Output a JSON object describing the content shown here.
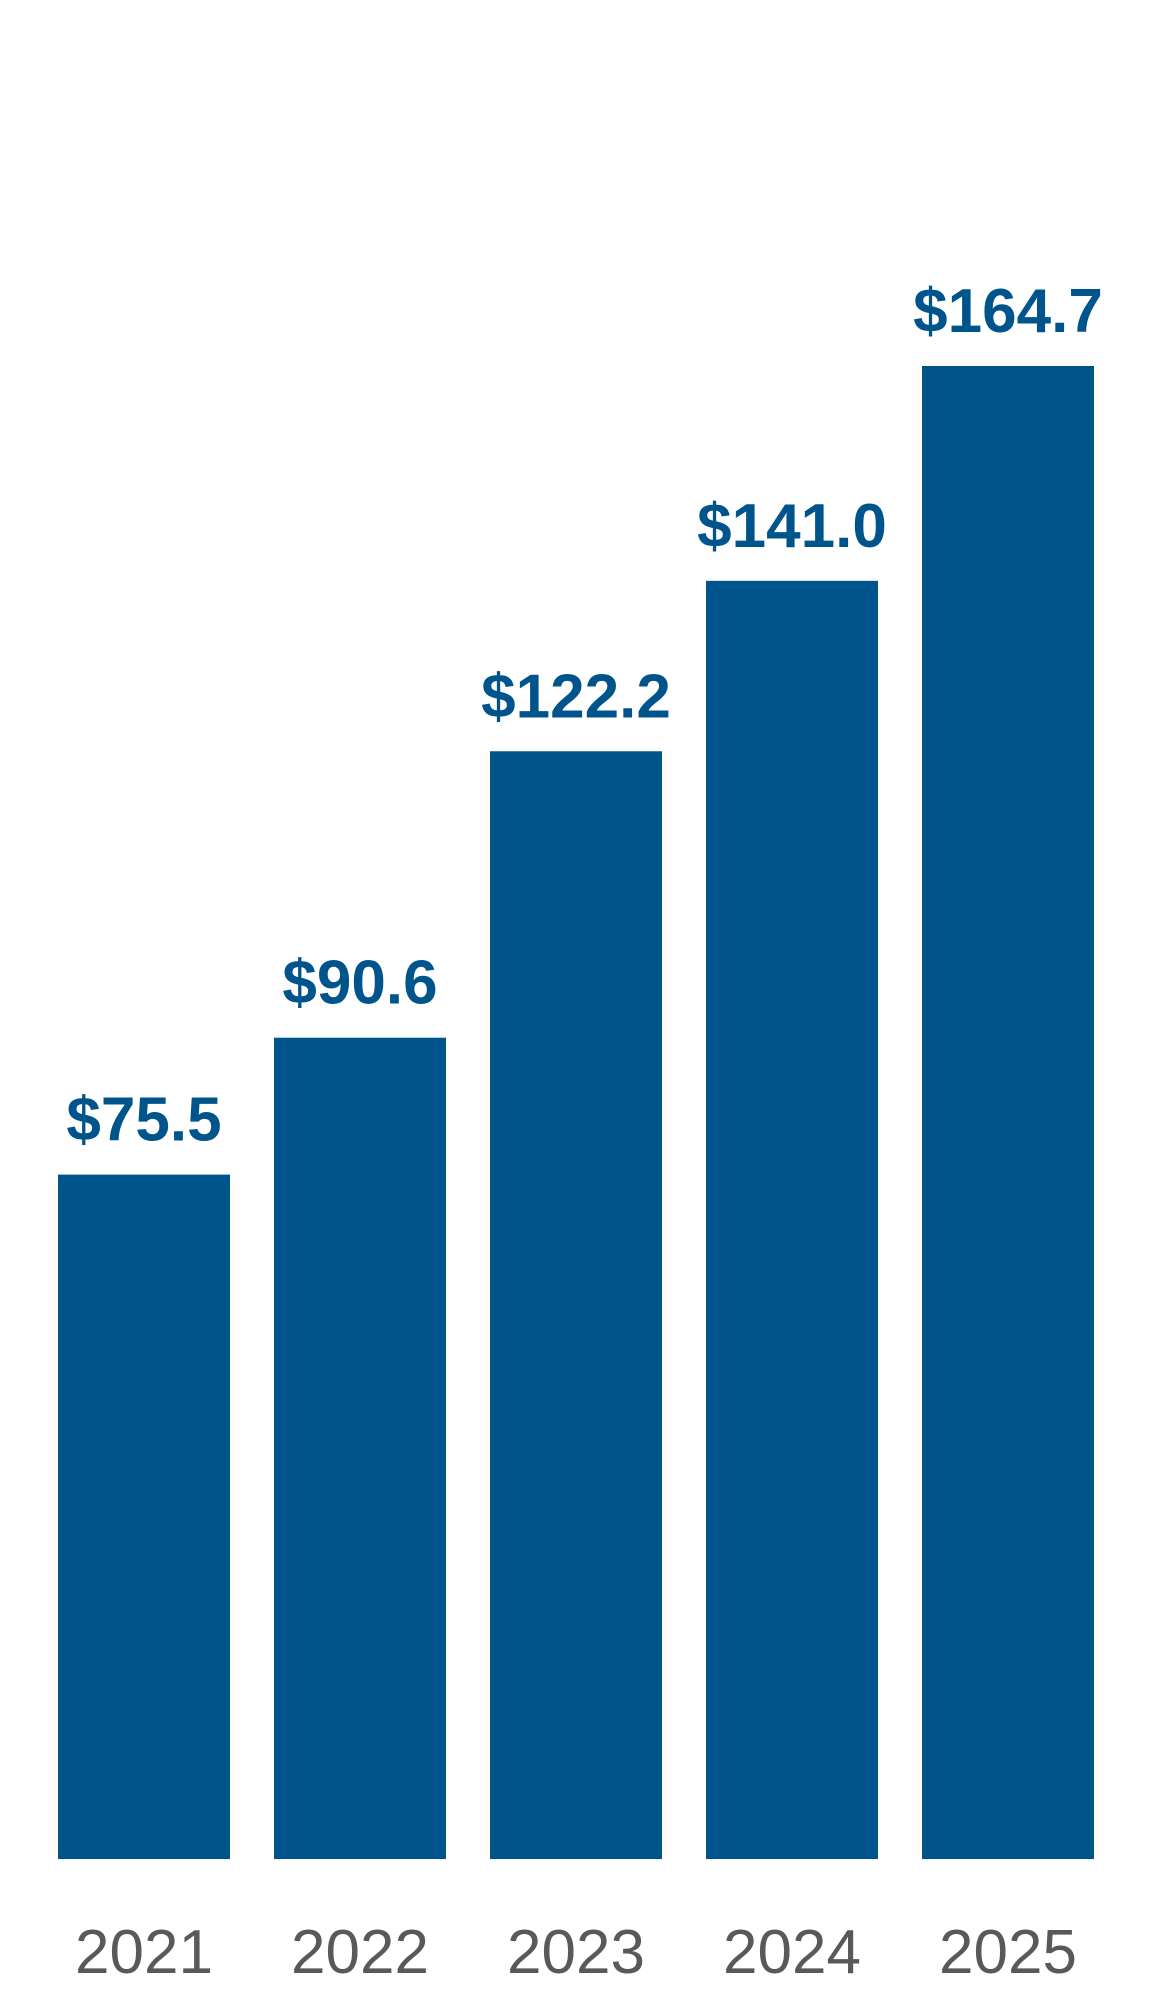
{
  "chart_data": {
    "type": "bar",
    "categories": [
      "2021",
      "2022",
      "2023",
      "2024",
      "2025"
    ],
    "values": [
      75.5,
      90.6,
      122.2,
      141.0,
      164.7
    ],
    "value_labels": [
      "$75.5",
      "$90.6",
      "$122.2",
      "$141.0",
      "$164.7"
    ],
    "color": "#00548c"
  }
}
